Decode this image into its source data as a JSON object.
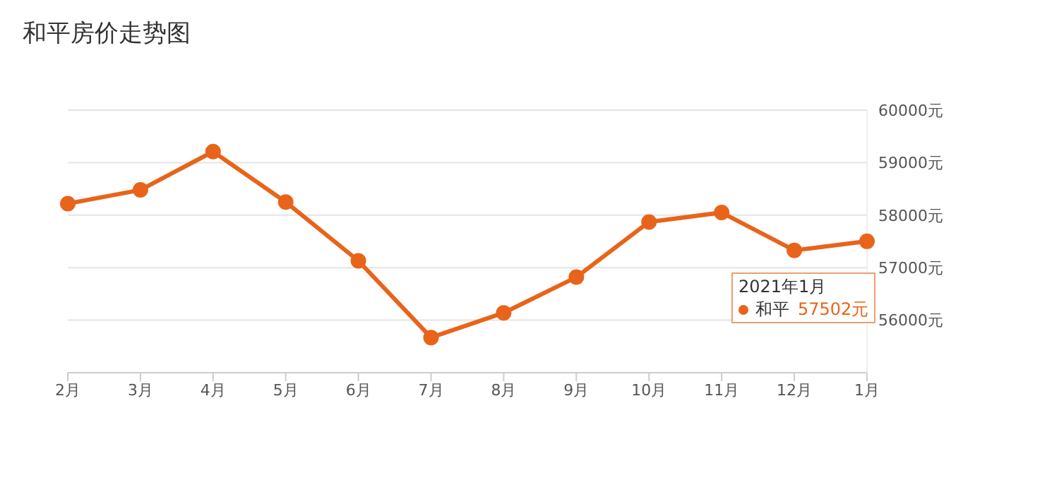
{
  "chart_data": {
    "type": "line",
    "title": "和平房价走势图",
    "categories": [
      "2月",
      "3月",
      "4月",
      "5月",
      "6月",
      "7月",
      "8月",
      "9月",
      "10月",
      "11月",
      "12月",
      "1月"
    ],
    "series": [
      {
        "name": "和平",
        "color": "#e8641b",
        "values": [
          58220,
          58480,
          59210,
          58250,
          57130,
          55670,
          56140,
          56820,
          57870,
          58050,
          57330,
          57502
        ],
        "value_labels": [
          null,
          null,
          null,
          null,
          null,
          null,
          null,
          null,
          null,
          null,
          null,
          "57502元"
        ]
      }
    ],
    "ylim": [
      55000,
      60000
    ],
    "yticks": [
      {
        "value": 56000,
        "label": "56000元"
      },
      {
        "value": 57000,
        "label": "57000元"
      },
      {
        "value": 58000,
        "label": "58000元"
      },
      {
        "value": 59000,
        "label": "59000元"
      },
      {
        "value": 60000,
        "label": "60000元"
      }
    ],
    "annotations": [
      "2021年1月"
    ],
    "grid": "y",
    "marker": "circle",
    "line_style": "solid",
    "legend": "right"
  }
}
